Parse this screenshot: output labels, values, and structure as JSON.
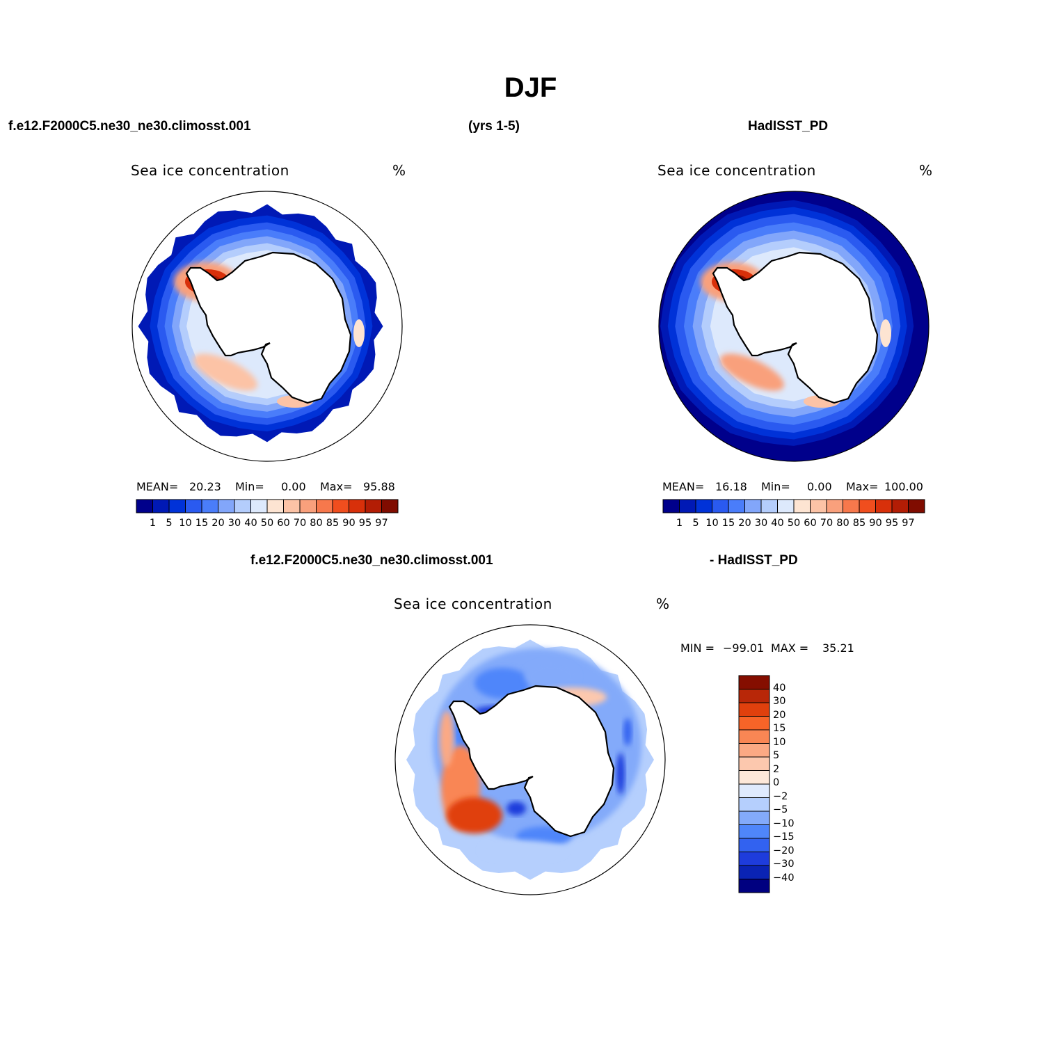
{
  "figure": {
    "title": "DJF",
    "header_left": "f.e12.F2000C5.ne30_ne30.climosst.001",
    "header_center": "(yrs 1-5)",
    "header_right": "HadISST_PD",
    "diff_header_left": "f.e12.F2000C5.ne30_ne30.climosst.001",
    "diff_header_right": "- HadISST_PD"
  },
  "colors": {
    "ice_scale": [
      "#00008b",
      "#0019b5",
      "#0032d8",
      "#2a5af0",
      "#4a7dfa",
      "#82a6fa",
      "#b4cdfc",
      "#dde9fc",
      "#fde4d2",
      "#fcc3a6",
      "#f9a07c",
      "#f7784c",
      "#f04e1e",
      "#d8300a",
      "#b31d05",
      "#800c00"
    ],
    "diff_scale": [
      "#000080",
      "#0a23b4",
      "#1e3cdc",
      "#3262f0",
      "#4f86fa",
      "#83aafa",
      "#b5cffd",
      "#dfeafd",
      "#fde8d9",
      "#fcc8ae",
      "#fba984",
      "#f98654",
      "#f76428",
      "#e0400d",
      "#b82708",
      "#850e00"
    ],
    "land": "#ffffff",
    "coast": "#000000"
  },
  "chart_data": [
    {
      "type": "heatmap",
      "projection": "south-polar-stereographic",
      "name": "model",
      "title": "Sea ice concentration",
      "units": "%",
      "stats": {
        "mean_label": "MEAN=",
        "mean": "20.23",
        "min_label": "Min=",
        "min": "0.00",
        "max_label": "Max=",
        "max": "95.88"
      },
      "colorbar_ticks": [
        "1",
        "5",
        "10",
        "15",
        "20",
        "30",
        "40",
        "50",
        "60",
        "70",
        "80",
        "85",
        "90",
        "95",
        "97"
      ],
      "features": {
        "open_ocean_fill": false,
        "weddell_max": 95.88,
        "ross_max": 60,
        "edge_irregular": true
      }
    },
    {
      "type": "heatmap",
      "projection": "south-polar-stereographic",
      "name": "observations",
      "title": "Sea ice concentration",
      "units": "%",
      "stats": {
        "mean_label": "MEAN=",
        "mean": "16.18",
        "min_label": "Min=",
        "min": "0.00",
        "max_label": "Max=",
        "max": "100.00"
      },
      "colorbar_ticks": [
        "1",
        "5",
        "10",
        "15",
        "20",
        "30",
        "40",
        "50",
        "60",
        "70",
        "80",
        "85",
        "90",
        "95",
        "97"
      ],
      "features": {
        "open_ocean_fill": true,
        "weddell_max": 100,
        "ross_max": 70,
        "edge_irregular": false
      }
    },
    {
      "type": "heatmap",
      "projection": "south-polar-stereographic",
      "name": "difference",
      "title": "Sea ice concentration",
      "units": "%",
      "stats": {
        "min_label": "MIN =",
        "min": "−99.01",
        "max_label": "MAX =",
        "max": "35.21"
      },
      "colorbar_ticks": [
        "40",
        "30",
        "20",
        "15",
        "10",
        "5",
        "2",
        "0",
        "−2",
        "−5",
        "−10",
        "−15",
        "−20",
        "−30",
        "−40"
      ]
    }
  ]
}
